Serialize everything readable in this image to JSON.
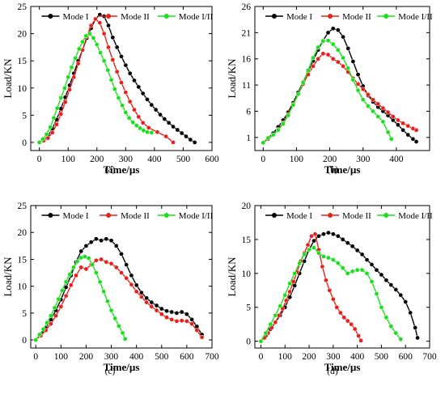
{
  "figure": {
    "colors": {
      "Mode I": "#000000",
      "Mode II": "#e8201c",
      "Mode I/II": "#18e01a"
    },
    "panels": [
      "(a)",
      "(b)",
      "(c)",
      "(d)"
    ]
  },
  "chart_data": [
    {
      "type": "line",
      "panel_label": "(a)",
      "xlabel": "Time/µs",
      "ylabel": "Load/KN",
      "xlim": [
        -30,
        600
      ],
      "ylim": [
        -1.5,
        25
      ],
      "xticks": [
        0,
        100,
        200,
        300,
        400,
        500,
        600
      ],
      "yticks": [
        0,
        5,
        10,
        15,
        20,
        25
      ],
      "legend_position": "top",
      "grid": false,
      "series": [
        {
          "name": "Mode I",
          "color": "#000000",
          "x": [
            0,
            15,
            30,
            45,
            60,
            75,
            90,
            105,
            120,
            135,
            150,
            165,
            180,
            195,
            210,
            225,
            240,
            255,
            270,
            285,
            300,
            315,
            330,
            345,
            360,
            375,
            390,
            405,
            420,
            435,
            450,
            465,
            480,
            495,
            510,
            525,
            540
          ],
          "y": [
            0,
            0.5,
            1.2,
            2.5,
            4.2,
            6.2,
            8.3,
            10.5,
            12.7,
            15.0,
            17.0,
            19.2,
            21.0,
            22.7,
            23.5,
            23.2,
            21.5,
            19.3,
            17.5,
            15.8,
            14.2,
            12.7,
            11.4,
            10.2,
            9.0,
            7.9,
            6.9,
            6.0,
            5.1,
            4.3,
            3.6,
            2.9,
            2.3,
            1.7,
            1.1,
            0.5,
            0
          ]
        },
        {
          "name": "Mode II",
          "color": "#e8201c",
          "x": [
            0,
            15,
            30,
            45,
            60,
            75,
            90,
            105,
            120,
            135,
            150,
            165,
            180,
            195,
            210,
            225,
            240,
            255,
            270,
            285,
            300,
            315,
            330,
            345,
            360,
            380,
            410,
            440,
            465
          ],
          "y": [
            0,
            0.3,
            0.8,
            1.8,
            3.3,
            5.2,
            7.4,
            9.7,
            12.0,
            14.5,
            17.0,
            19.5,
            21.5,
            22.7,
            22.0,
            20.0,
            17.5,
            15.2,
            13.0,
            11.0,
            9.2,
            7.5,
            6.0,
            4.7,
            3.6,
            2.7,
            1.9,
            1.1,
            0
          ]
        },
        {
          "name": "Mode I/II",
          "color": "#18e01a",
          "x": [
            0,
            12,
            25,
            38,
            50,
            62,
            75,
            88,
            100,
            112,
            125,
            138,
            150,
            162,
            175,
            188,
            200,
            212,
            225,
            238,
            250,
            262,
            275,
            288,
            300,
            312,
            325,
            338,
            350,
            362,
            375,
            390
          ],
          "y": [
            0,
            0.6,
            1.5,
            2.8,
            4.5,
            6.3,
            8.2,
            10.0,
            12.0,
            13.8,
            15.5,
            17.2,
            18.5,
            19.6,
            20.0,
            19.2,
            18.0,
            16.5,
            15.0,
            13.3,
            11.5,
            9.8,
            8.2,
            6.8,
            5.5,
            4.5,
            3.7,
            3.1,
            2.6,
            2.2,
            1.9,
            1.8
          ]
        }
      ]
    },
    {
      "type": "line",
      "panel_label": "(b)",
      "xlabel": "Time/µs",
      "ylabel": "Load/KN",
      "xlim": [
        -25,
        500
      ],
      "ylim": [
        -1.5,
        26
      ],
      "xticks": [
        0,
        100,
        200,
        300,
        400
      ],
      "yticks": [
        1,
        6,
        11,
        16,
        21,
        26
      ],
      "legend_position": "top",
      "grid": false,
      "series": [
        {
          "name": "Mode I",
          "color": "#000000",
          "x": [
            0,
            15,
            30,
            45,
            60,
            75,
            90,
            105,
            120,
            135,
            150,
            165,
            180,
            195,
            210,
            225,
            240,
            255,
            270,
            285,
            300,
            315,
            330,
            345,
            360,
            375,
            390,
            405,
            420,
            435,
            450,
            460
          ],
          "y": [
            0,
            0.9,
            1.8,
            3.0,
            4.3,
            5.8,
            7.6,
            9.6,
            11.6,
            13.6,
            15.6,
            17.7,
            19.5,
            21.0,
            21.8,
            21.5,
            20.2,
            18.0,
            15.5,
            13.0,
            10.8,
            9.0,
            7.8,
            6.8,
            6.0,
            5.2,
            4.3,
            3.4,
            2.4,
            1.5,
            0.7,
            0.2
          ]
        },
        {
          "name": "Mode II",
          "color": "#e8201c",
          "x": [
            0,
            15,
            30,
            45,
            60,
            75,
            90,
            105,
            120,
            135,
            150,
            165,
            180,
            195,
            210,
            225,
            240,
            255,
            270,
            285,
            300,
            315,
            330,
            345,
            360,
            375,
            390,
            405,
            420,
            435,
            450,
            460
          ],
          "y": [
            0,
            0.7,
            1.5,
            2.5,
            3.8,
            5.4,
            7.3,
            9.2,
            11.2,
            13.0,
            14.6,
            16.0,
            17.0,
            16.8,
            16.0,
            15.4,
            14.6,
            13.5,
            12.3,
            11.2,
            10.2,
            9.2,
            8.2,
            7.4,
            6.6,
            5.8,
            5.0,
            4.3,
            3.7,
            3.2,
            2.7,
            2.4
          ]
        },
        {
          "name": "Mode I/II",
          "color": "#18e01a",
          "x": [
            0,
            15,
            30,
            45,
            60,
            75,
            90,
            105,
            120,
            135,
            150,
            165,
            180,
            195,
            210,
            225,
            240,
            255,
            270,
            285,
            300,
            315,
            330,
            345,
            360,
            375,
            385
          ],
          "y": [
            0,
            0.9,
            1.5,
            2.4,
            3.6,
            5.2,
            7.2,
            9.3,
            11.5,
            13.8,
            16.2,
            18.2,
            19.4,
            19.5,
            18.8,
            17.7,
            16.2,
            14.2,
            12.0,
            10.0,
            8.2,
            7.0,
            6.0,
            5.0,
            4.0,
            2.0,
            0.7
          ]
        }
      ]
    },
    {
      "type": "line",
      "panel_label": "(c)",
      "xlabel": "Time/µs",
      "ylabel": "Load/KN",
      "xlim": [
        -20,
        700
      ],
      "ylim": [
        -1.5,
        25
      ],
      "xticks": [
        0,
        100,
        200,
        300,
        400,
        500,
        600,
        700
      ],
      "yticks": [
        0,
        5,
        10,
        15,
        20,
        25
      ],
      "legend_position": "top",
      "grid": false,
      "series": [
        {
          "name": "Mode I",
          "color": "#000000",
          "x": [
            0,
            20,
            40,
            60,
            80,
            100,
            120,
            140,
            160,
            180,
            200,
            220,
            240,
            260,
            280,
            300,
            320,
            340,
            360,
            380,
            400,
            420,
            440,
            460,
            480,
            500,
            520,
            540,
            560,
            580,
            600,
            620,
            640,
            660
          ],
          "y": [
            0,
            1.0,
            2.2,
            3.8,
            5.5,
            7.5,
            9.8,
            12.0,
            14.5,
            16.5,
            17.5,
            18.2,
            18.8,
            18.5,
            18.8,
            18.5,
            17.5,
            16.0,
            14.0,
            12.0,
            10.2,
            8.8,
            7.8,
            7.0,
            6.4,
            5.8,
            5.4,
            5.2,
            5.0,
            5.2,
            4.8,
            3.8,
            2.5,
            1.0
          ]
        },
        {
          "name": "Mode II",
          "color": "#e8201c",
          "x": [
            0,
            20,
            40,
            60,
            80,
            100,
            120,
            140,
            160,
            180,
            200,
            220,
            240,
            260,
            280,
            300,
            320,
            340,
            360,
            380,
            400,
            420,
            440,
            460,
            480,
            500,
            520,
            540,
            560,
            580,
            600,
            620,
            640,
            660
          ],
          "y": [
            0,
            0.8,
            1.8,
            3.0,
            4.5,
            6.2,
            8.2,
            10.2,
            12.0,
            13.5,
            13.2,
            14.0,
            14.8,
            15.0,
            14.5,
            14.2,
            13.5,
            12.5,
            11.5,
            10.3,
            9.0,
            8.0,
            7.0,
            6.2,
            5.5,
            4.8,
            4.2,
            3.8,
            3.5,
            3.6,
            3.5,
            3.0,
            1.8,
            0.5
          ]
        },
        {
          "name": "Mode I/II",
          "color": "#18e01a",
          "x": [
            0,
            15,
            30,
            45,
            60,
            75,
            90,
            105,
            120,
            135,
            150,
            165,
            180,
            195,
            210,
            225,
            240,
            255,
            270,
            285,
            300,
            315,
            330,
            345,
            355
          ],
          "y": [
            0,
            1.0,
            2.0,
            3.2,
            4.5,
            6.0,
            7.6,
            9.2,
            10.8,
            12.2,
            13.5,
            14.6,
            15.3,
            15.5,
            15.2,
            14.0,
            12.5,
            10.8,
            9.0,
            7.2,
            5.5,
            4.0,
            2.6,
            1.3,
            0.2
          ]
        }
      ]
    },
    {
      "type": "line",
      "panel_label": "(d)",
      "xlabel": "Time/µs",
      "ylabel": "Load/KN",
      "xlim": [
        -25,
        700
      ],
      "ylim": [
        -1,
        20
      ],
      "xticks": [
        0,
        100,
        200,
        300,
        400,
        500,
        600,
        700
      ],
      "yticks": [
        0,
        5,
        10,
        15,
        20
      ],
      "legend_position": "top",
      "grid": false,
      "series": [
        {
          "name": "Mode I",
          "color": "#000000",
          "x": [
            0,
            20,
            40,
            60,
            80,
            100,
            120,
            140,
            160,
            180,
            200,
            220,
            240,
            260,
            280,
            300,
            320,
            340,
            360,
            380,
            400,
            420,
            440,
            460,
            480,
            500,
            520,
            540,
            560,
            580,
            600,
            620,
            640,
            650
          ],
          "y": [
            0,
            0.8,
            1.8,
            2.8,
            3.8,
            5.0,
            6.5,
            8.2,
            10.0,
            11.8,
            13.5,
            14.8,
            15.5,
            15.8,
            16.0,
            15.8,
            15.5,
            15.0,
            14.5,
            14.0,
            13.4,
            12.8,
            12.0,
            11.3,
            10.5,
            9.8,
            9.0,
            8.3,
            7.6,
            6.8,
            5.8,
            4.2,
            2.0,
            0.5
          ]
        },
        {
          "name": "Mode II",
          "color": "#e8201c",
          "x": [
            0,
            15,
            30,
            45,
            60,
            75,
            90,
            105,
            120,
            135,
            150,
            165,
            180,
            195,
            210,
            225,
            240,
            255,
            270,
            285,
            300,
            315,
            330,
            345,
            360,
            375,
            390,
            405,
            415
          ],
          "y": [
            0,
            0.5,
            1.2,
            2.0,
            2.8,
            3.8,
            4.8,
            6.0,
            7.3,
            8.8,
            10.2,
            11.8,
            13.0,
            14.2,
            15.5,
            15.8,
            13.5,
            11.0,
            9.0,
            7.5,
            6.2,
            5.0,
            4.2,
            3.5,
            3.0,
            2.5,
            1.8,
            0.8,
            0.1
          ]
        },
        {
          "name": "Mode I/II",
          "color": "#18e01a",
          "x": [
            0,
            20,
            40,
            60,
            80,
            100,
            120,
            140,
            160,
            180,
            200,
            220,
            240,
            260,
            280,
            300,
            320,
            340,
            360,
            380,
            400,
            420,
            440,
            460,
            480,
            500,
            520,
            540,
            560,
            580
          ],
          "y": [
            0,
            1.2,
            2.5,
            3.8,
            5.2,
            6.8,
            8.5,
            10.0,
            11.5,
            12.8,
            13.5,
            13.8,
            13.0,
            12.5,
            12.3,
            12.0,
            11.5,
            10.8,
            10.0,
            10.3,
            10.5,
            10.5,
            10.0,
            8.8,
            7.0,
            5.0,
            3.5,
            2.2,
            1.2,
            0.3
          ]
        }
      ]
    }
  ]
}
